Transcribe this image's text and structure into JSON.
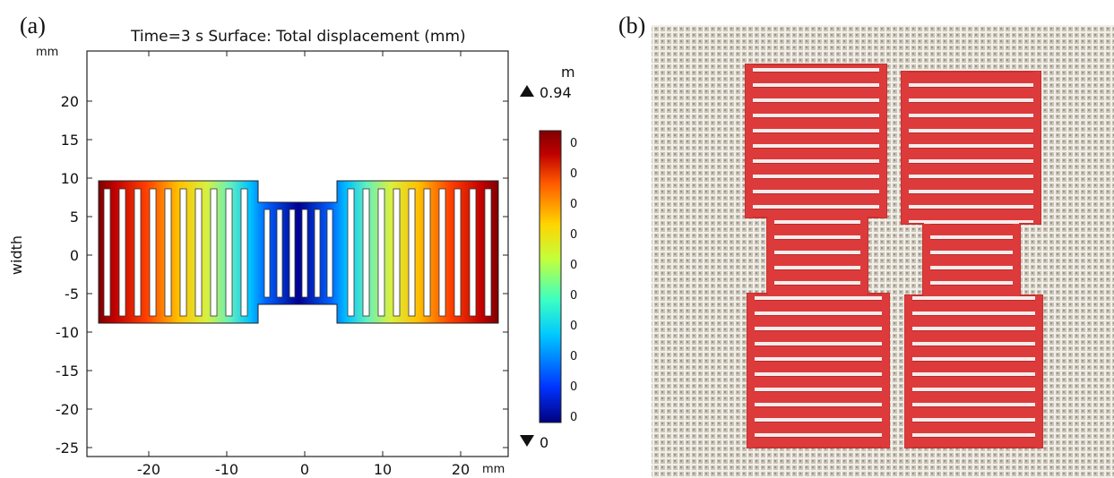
{
  "panel_a": {
    "label": "(a)",
    "title": "Time=3 s   Surface: Total displacement (mm)",
    "y_unit": "mm",
    "x_unit": "mm",
    "y_axis_label": "width",
    "x_ticks": [
      "-20",
      "-10",
      "0",
      "10",
      "20"
    ],
    "y_ticks": [
      "20",
      "15",
      "10",
      "5",
      "0",
      "-5",
      "-10",
      "-15",
      "-20",
      "-25"
    ],
    "colorbar": {
      "unit_partial": "m",
      "max_label": "0.94",
      "min_label": "0",
      "tick_labels": [
        "0",
        "0",
        "0",
        "0",
        "0",
        "0",
        "0",
        "0",
        "0",
        "0"
      ],
      "colors": [
        "#00007f",
        "#0033ff",
        "#00c8ff",
        "#3cffc3",
        "#c3ff3c",
        "#ffd400",
        "#ff5a00",
        "#bf0000",
        "#800000"
      ],
      "max_marker": "up-triangle-icon",
      "min_marker": "down-triangle-icon"
    }
  },
  "panel_b": {
    "label": "(b)",
    "specimen_color": "#dd3b3b",
    "background_color": "#b6b0a6"
  }
}
